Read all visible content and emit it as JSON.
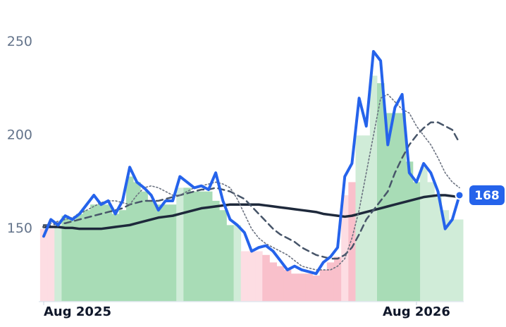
{
  "chart_data": {
    "type": "line",
    "categories": [
      "Aug 2025",
      null,
      null,
      null,
      null,
      null,
      null,
      null,
      null,
      null,
      null,
      null,
      null,
      null,
      null,
      null,
      null,
      null,
      null,
      null,
      null,
      null,
      null,
      null,
      null,
      null,
      null,
      null,
      null,
      null,
      null,
      null,
      null,
      null,
      null,
      null,
      null,
      null,
      null,
      null,
      null,
      null,
      null,
      null,
      null,
      null,
      null,
      null,
      null,
      null,
      null,
      null,
      "Aug 2026",
      null,
      null,
      null,
      null,
      null,
      null
    ],
    "series": [
      {
        "color": "#1e293b",
        "style": "solid",
        "width": 3.5,
        "values": [
          151,
          151,
          151,
          150.5,
          150.5,
          150,
          150,
          150,
          150,
          150.5,
          151,
          151.5,
          152,
          153,
          154,
          155,
          156,
          156.5,
          157,
          158,
          159,
          160,
          161,
          161.5,
          162,
          162.5,
          163,
          163,
          163,
          163,
          163,
          162.5,
          162,
          161.5,
          161,
          160.5,
          160,
          159.5,
          159,
          158,
          157.5,
          157,
          156.5,
          157,
          158,
          159,
          160,
          161,
          162,
          163,
          164,
          165,
          166,
          167,
          167.5,
          168,
          168,
          167.5,
          167
        ]
      },
      {
        "color": "#475569",
        "style": "dashed",
        "width": 2.5,
        "values": [
          152,
          152,
          153,
          153,
          154,
          155,
          156,
          157,
          158,
          159,
          160,
          161,
          163,
          164,
          165,
          165,
          165,
          166,
          167,
          168,
          169,
          170,
          171,
          171,
          172,
          171,
          170,
          168,
          166,
          162,
          158,
          154,
          150,
          147,
          145,
          143,
          140,
          138,
          136,
          135,
          134,
          134,
          136,
          140,
          147,
          155,
          160,
          165,
          170,
          180,
          188,
          195,
          200,
          204,
          207,
          207,
          205,
          203,
          196
        ]
      },
      {
        "color": "#6b7280",
        "style": "dotted",
        "width": 1.6,
        "values": [
          151,
          153,
          154,
          155,
          156,
          158,
          160,
          162,
          164,
          165,
          165,
          164,
          163,
          168,
          172,
          173,
          172,
          170,
          168,
          168,
          170,
          172,
          173,
          174,
          175,
          174,
          172,
          166,
          158,
          150,
          145,
          142,
          140,
          138,
          136,
          133,
          130,
          129,
          128,
          128,
          128,
          130,
          134,
          145,
          160,
          180,
          200,
          220,
          222,
          218,
          214,
          212,
          205,
          200,
          195,
          188,
          180,
          175,
          172
        ]
      },
      {
        "color": "#2563eb",
        "style": "solid",
        "width": 4,
        "values": [
          146,
          155,
          152,
          157,
          155,
          158,
          163,
          168,
          163,
          165,
          158,
          165,
          183,
          175,
          172,
          168,
          160,
          165,
          165,
          178,
          175,
          172,
          173,
          171,
          180,
          165,
          155,
          152,
          148,
          138,
          140,
          141,
          138,
          133,
          128,
          130,
          128,
          127,
          126,
          132,
          135,
          140,
          178,
          185,
          220,
          205,
          245,
          240,
          195,
          215,
          222,
          180,
          175,
          185,
          180,
          170,
          150,
          155,
          168
        ]
      }
    ],
    "bars": {
      "values": [
        150,
        150,
        152,
        157,
        155,
        158,
        160,
        163,
        163,
        163,
        158,
        160,
        178,
        175,
        170,
        165,
        163,
        163,
        163,
        172,
        172,
        170,
        170,
        170,
        165,
        160,
        152,
        152,
        138,
        138,
        138,
        136,
        132,
        130,
        128,
        126,
        126,
        126,
        125,
        128,
        132,
        135,
        168,
        175,
        200,
        200,
        232,
        228,
        212,
        212,
        212,
        186,
        175,
        183,
        175,
        168,
        160,
        155,
        155
      ],
      "colors": [
        "#fddde3",
        "#fddde3",
        "#d0ecd8",
        "#a8dcb6",
        "#a8dcb6",
        "#a8dcb6",
        "#a8dcb6",
        "#a8dcb6",
        "#a8dcb6",
        "#a8dcb6",
        "#a8dcb6",
        "#a8dcb6",
        "#a8dcb6",
        "#a8dcb6",
        "#a8dcb6",
        "#a8dcb6",
        "#a8dcb6",
        "#a8dcb6",
        "#a8dcb6",
        "#d0ecd8",
        "#a8dcb6",
        "#a8dcb6",
        "#a8dcb6",
        "#a8dcb6",
        "#a8dcb6",
        "#a8dcb6",
        "#a8dcb6",
        "#d0ecd8",
        "#fddde3",
        "#fddde3",
        "#fddde3",
        "#f9c0cb",
        "#f9c0cb",
        "#f9c0cb",
        "#f9c0cb",
        "#f9c0cb",
        "#f9c0cb",
        "#f9c0cb",
        "#f9c0cb",
        "#f9c0cb",
        "#f9c0cb",
        "#f9c0cb",
        "#fddde3",
        "#f9c0cb",
        "#d0ecd8",
        "#d0ecd8",
        "#d0ecd8",
        "#a8dcb6",
        "#a8dcb6",
        "#a8dcb6",
        "#a8dcb6",
        "#a8dcb6",
        "#a8dcb6",
        "#d0ecd8",
        "#d0ecd8",
        "#d0ecd8",
        "#d0ecd8",
        "#d0ecd8",
        "#d0ecd8"
      ]
    },
    "last_value": 168,
    "badge_color": "#2563eb",
    "ylim": [
      111,
      265
    ],
    "yticks": [
      150,
      200,
      250
    ]
  }
}
